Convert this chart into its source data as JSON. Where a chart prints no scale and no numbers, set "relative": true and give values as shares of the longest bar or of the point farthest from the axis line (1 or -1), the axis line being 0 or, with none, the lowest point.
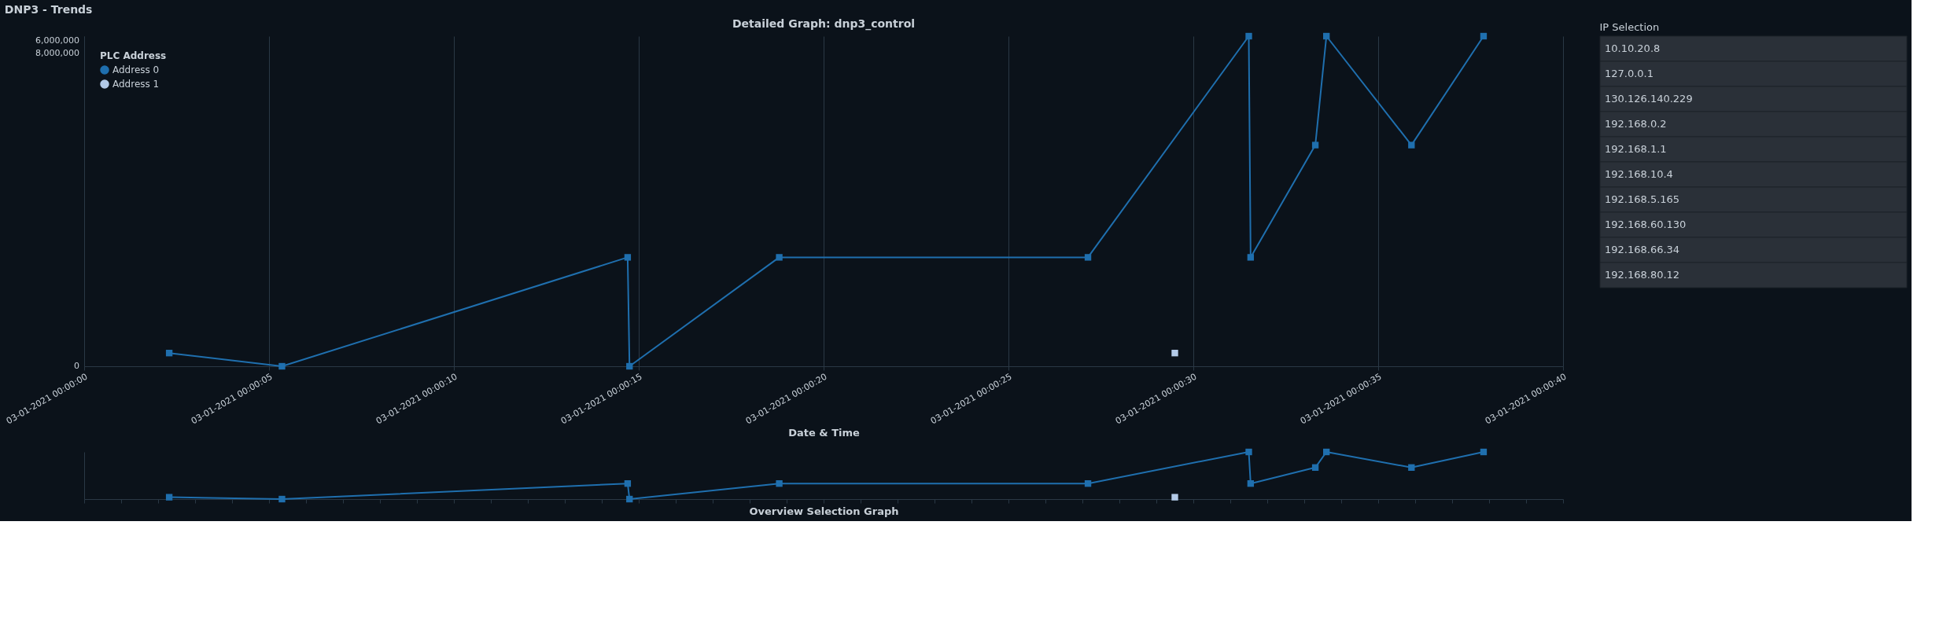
{
  "chart_data": [
    {
      "type": "line",
      "title": "Detailed Graph: dnp3_control",
      "xlabel": "Date & Time",
      "legend_title": "PLC Address",
      "annotations": [
        "DNP3 - Trends",
        "6,000,000",
        "8,000,000",
        "0"
      ],
      "relative": true,
      "grid": "x",
      "legend": "top left",
      "marker": "square",
      "line_style": "solid",
      "xlim": [
        "2021-03-01T00:00:00",
        "2021-03-01T00:00:40"
      ],
      "xticks": [
        {
          "value": "2021-03-01T00:00:00",
          "label": "03-01-2021 00:00:00"
        },
        {
          "value": "2021-03-01T00:00:05",
          "label": "03-01-2021 00:00:05"
        },
        {
          "value": "2021-03-01T00:00:10",
          "label": "03-01-2021 00:00:10"
        },
        {
          "value": "2021-03-01T00:00:15",
          "label": "03-01-2021 00:00:15"
        },
        {
          "value": "2021-03-01T00:00:20",
          "label": "03-01-2021 00:00:20"
        },
        {
          "value": "2021-03-01T00:00:25",
          "label": "03-01-2021 00:00:25"
        },
        {
          "value": "2021-03-01T00:00:30",
          "label": "03-01-2021 00:00:30"
        },
        {
          "value": "2021-03-01T00:00:35",
          "label": "03-01-2021 00:00:35"
        },
        {
          "value": "2021-03-01T00:00:40",
          "label": "03-01-2021 00:00:40"
        }
      ],
      "series": [
        {
          "name": "Address 0",
          "color": "#1f6fae",
          "x": [
            "2021-03-01T00:00:02.3",
            "2021-03-01T00:00:05.35",
            "2021-03-01T00:00:14.7",
            "2021-03-01T00:00:14.75",
            "2021-03-01T00:00:18.8",
            "2021-03-01T00:00:27.15",
            "2021-03-01T00:00:31.5",
            "2021-03-01T00:00:31.55",
            "2021-03-01T00:00:33.3",
            "2021-03-01T00:00:33.6",
            "2021-03-01T00:00:35.9",
            "2021-03-01T00:00:37.85"
          ],
          "values": [
            0.04,
            0,
            0.33,
            0,
            0.33,
            0.33,
            1,
            0.33,
            0.67,
            1,
            0.67,
            1
          ]
        },
        {
          "name": "Address 1",
          "type": "scatter",
          "color": "#b3cae8",
          "x": [
            "2021-03-01T00:00:29.5"
          ],
          "values": [
            0.04
          ]
        }
      ]
    },
    {
      "type": "line",
      "xlabel": "Overview Selection Graph",
      "relative": true,
      "legend": false,
      "marker": "square",
      "line_style": "solid",
      "tick_labels": false,
      "xlim": [
        "2021-03-01T00:00:00",
        "2021-03-01T00:00:40"
      ],
      "series": [
        {
          "color": "#1f6fae",
          "x": [
            "2021-03-01T00:00:02.3",
            "2021-03-01T00:00:05.35",
            "2021-03-01T00:00:14.7",
            "2021-03-01T00:00:14.75",
            "2021-03-01T00:00:18.8",
            "2021-03-01T00:00:27.15",
            "2021-03-01T00:00:31.5",
            "2021-03-01T00:00:31.55",
            "2021-03-01T00:00:33.3",
            "2021-03-01T00:00:33.6",
            "2021-03-01T00:00:35.9",
            "2021-03-01T00:00:37.85"
          ],
          "values": [
            0.04,
            0,
            0.33,
            0,
            0.33,
            0.33,
            1,
            0.33,
            0.67,
            1,
            0.67,
            1
          ]
        },
        {
          "type": "scatter",
          "color": "#b3cae8",
          "x": [
            "2021-03-01T00:00:29.5"
          ],
          "values": [
            0.04
          ]
        }
      ]
    },
    {
      "type": "other",
      "title": "IP Selection",
      "annotations": [
        "10.10.20.8",
        "127.0.0.1",
        "130.126.140.229",
        "192.168.0.2",
        "192.168.1.1",
        "192.168.10.4",
        "192.168.5.165",
        "192.168.60.130",
        "192.168.66.34",
        "192.168.80.12"
      ]
    }
  ]
}
